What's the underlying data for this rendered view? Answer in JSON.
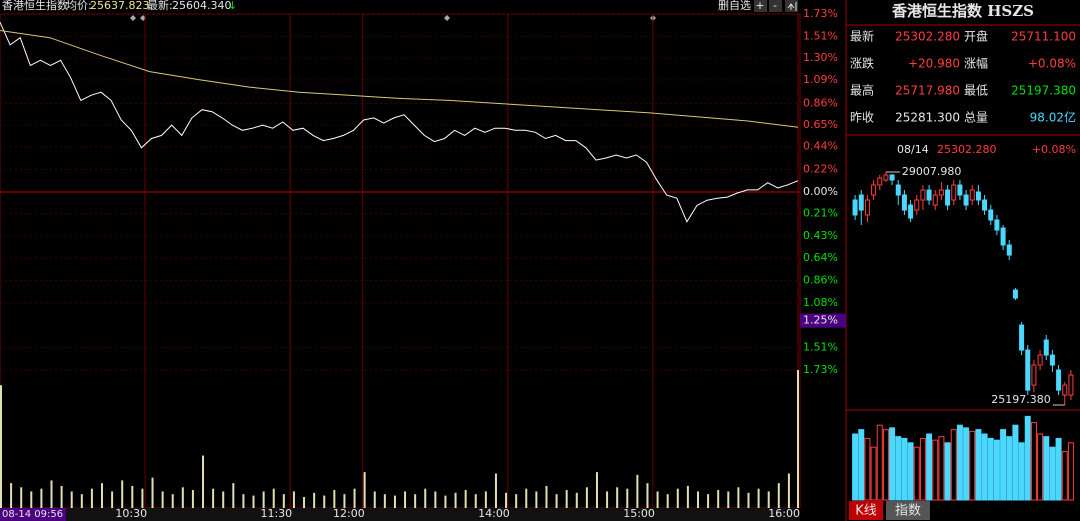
{
  "header": {
    "name": "香港恒生指数",
    "avg_label": "均价:",
    "avg_value": "25637.823",
    "last_label": "最新:",
    "last_value": "25604.340",
    "arrow": "↓",
    "buttons": [
      "删自选",
      "+",
      "-"
    ]
  },
  "chart_data": [
    {
      "type": "line",
      "series": [
        {
          "color": "#ffffff",
          "values": [
            1.65,
            1.43,
            1.5,
            1.23,
            1.28,
            1.23,
            1.28,
            1.11,
            0.89,
            0.94,
            0.97,
            0.89,
            0.7,
            0.6,
            0.43,
            0.52,
            0.55,
            0.65,
            0.55,
            0.72,
            0.8,
            0.78,
            0.72,
            0.65,
            0.6,
            0.62,
            0.65,
            0.62,
            0.68,
            0.6,
            0.62,
            0.55,
            0.5,
            0.52,
            0.55,
            0.6,
            0.7,
            0.72,
            0.67,
            0.72,
            0.75,
            0.65,
            0.55,
            0.49,
            0.52,
            0.6,
            0.55,
            0.62,
            0.58,
            0.62,
            0.62,
            0.6,
            0.6,
            0.58,
            0.52,
            0.55,
            0.5,
            0.5,
            0.43,
            0.31,
            0.33,
            0.36,
            0.33,
            0.36,
            0.29,
            0.12,
            -0.03,
            -0.06,
            -0.29,
            -0.13,
            -0.08,
            -0.06,
            -0.05,
            -0.01,
            0.02,
            0.02,
            0.09,
            0.04,
            0.07,
            0.11
          ]
        },
        {
          "color": "#d8c878",
          "values": [
            1.57,
            1.5,
            1.33,
            1.17,
            1.09,
            1.02,
            0.97,
            0.94,
            0.91,
            0.89,
            0.86,
            0.83,
            0.8,
            0.77,
            0.73,
            0.69,
            0.63
          ]
        }
      ],
      "ylim": [
        -1.73,
        1.73
      ],
      "yticks": [
        {
          "value": 1.73,
          "label": "1.73%"
        },
        {
          "value": 1.51,
          "label": "1.51%"
        },
        {
          "value": 1.3,
          "label": "1.30%"
        },
        {
          "value": 1.09,
          "label": "1.09%"
        },
        {
          "value": 0.86,
          "label": "0.86%"
        },
        {
          "value": 0.65,
          "label": "0.65%"
        },
        {
          "value": 0.44,
          "label": "0.44%"
        },
        {
          "value": 0.22,
          "label": "0.22%"
        },
        {
          "value": 0,
          "label": "0.00%"
        },
        {
          "value": -0.21,
          "label": "0.21%"
        },
        {
          "value": -0.43,
          "label": "0.43%"
        },
        {
          "value": -0.64,
          "label": "0.64%"
        },
        {
          "value": -0.86,
          "label": "0.86%"
        },
        {
          "value": -1.08,
          "label": "1.08%"
        },
        {
          "value": -1.51,
          "label": "1.51%"
        },
        {
          "value": -1.73,
          "label": "1.73%"
        }
      ],
      "cursor_y": {
        "value": -1.25,
        "label": "1.25%"
      },
      "xticks": [
        "10:30",
        "11:30",
        "12:00",
        "14:00",
        "15:00",
        "16:00"
      ],
      "cursor_x": "08-14 09:56",
      "grid": true
    },
    {
      "type": "bar",
      "color": "#e0e0b0",
      "ylim": [
        0,
        100
      ],
      "values": [
        89,
        18,
        15,
        12,
        14,
        20,
        16,
        12,
        10,
        14,
        18,
        12,
        20,
        16,
        14,
        22,
        12,
        10,
        15,
        13,
        38,
        14,
        12,
        18,
        10,
        9,
        12,
        14,
        10,
        12,
        8,
        11,
        9,
        13,
        10,
        14,
        26,
        12,
        10,
        9,
        12,
        10,
        14,
        12,
        9,
        11,
        13,
        10,
        12,
        25,
        11,
        10,
        14,
        12,
        16,
        10,
        13,
        11,
        15,
        26,
        12,
        15,
        14,
        24,
        18,
        12,
        10,
        14,
        16,
        12,
        10,
        13,
        12,
        15,
        11,
        14,
        12,
        18,
        25,
        100
      ]
    },
    {
      "type": "candlestick",
      "up_color": "#ff3c3c",
      "down_color": "#4ad8ff",
      "ylim": [
        25197.38,
        29007.98
      ],
      "open": [
        28550,
        28632,
        28305,
        28632,
        28795,
        28877,
        28959,
        28795,
        28632,
        28468,
        28386,
        28550,
        28713,
        28468,
        28632,
        28713,
        28550,
        28795,
        28632,
        28550,
        28681,
        28550,
        28386,
        28223,
        28092,
        27814,
        27078,
        26505,
        26096,
        25523,
        25851,
        26260,
        26014,
        25769,
        25360,
        25360
      ],
      "high": [
        28632,
        28713,
        28632,
        28877,
        28959,
        29007.98,
        28975,
        28877,
        28713,
        28550,
        28632,
        28795,
        28795,
        28713,
        28844,
        28795,
        28877,
        28877,
        28713,
        28795,
        28795,
        28632,
        28468,
        28305,
        28141,
        27896,
        27110,
        26554,
        26178,
        25932,
        26096,
        26341,
        26096,
        25851,
        25572,
        25769
      ],
      "low": [
        28223,
        28141,
        28190,
        28550,
        28713,
        28844,
        28795,
        28468,
        28305,
        28190,
        28305,
        28386,
        28468,
        28386,
        28550,
        28386,
        28468,
        28550,
        28386,
        28468,
        28468,
        28305,
        28141,
        27977,
        27732,
        27568,
        26914,
        26014,
        25360,
        25409,
        25769,
        25932,
        25736,
        25360,
        25197.38,
        25278
      ],
      "close": [
        28305,
        28386,
        28550,
        28795,
        28910,
        28959,
        28877,
        28632,
        28386,
        28255,
        28550,
        28713,
        28550,
        28632,
        28713,
        28468,
        28795,
        28632,
        28468,
        28713,
        28550,
        28386,
        28223,
        28059,
        27814,
        27650,
        26947,
        26096,
        25441,
        25851,
        26014,
        26014,
        25851,
        25441,
        25523,
        25687
      ],
      "high_label": "29007.980",
      "low_label": "25197.380"
    },
    {
      "type": "bar",
      "ylim": [
        0,
        100
      ],
      "values": [
        75,
        80,
        70,
        60,
        85,
        80,
        82,
        72,
        70,
        65,
        60,
        70,
        75,
        68,
        72,
        65,
        80,
        85,
        82,
        78,
        80,
        75,
        70,
        68,
        80,
        72,
        85,
        65,
        95,
        88,
        75,
        72,
        60,
        70,
        55,
        65
      ]
    }
  ],
  "quote": {
    "title": "香港恒生指数 HSZS",
    "rows": [
      [
        "最新",
        "25302.280",
        "开盘",
        "25711.100"
      ],
      [
        "涨跌",
        "+20.980",
        "涨幅",
        "+0.08%"
      ],
      [
        "最高",
        "25717.980",
        "最低",
        "25197.380"
      ],
      [
        "昨收",
        "25281.300",
        "总量",
        "98.02亿"
      ]
    ]
  },
  "kline_header": [
    "08/14",
    "25302.280",
    "+0.08%"
  ],
  "tabs": [
    "K线",
    "指数"
  ]
}
